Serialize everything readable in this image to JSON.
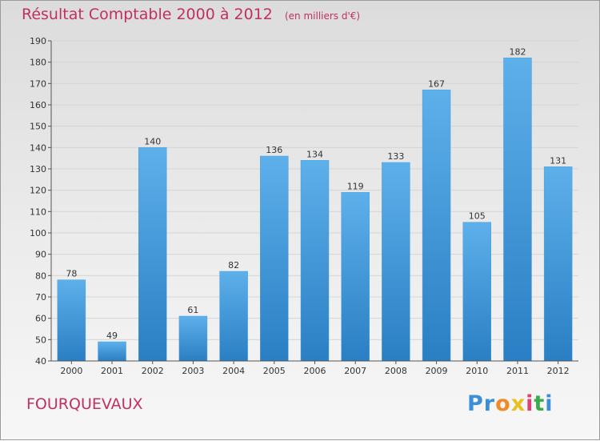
{
  "chart_data": {
    "type": "bar",
    "title": "Résultat Comptable 2000 à 2012",
    "subtitle": "(en milliers d'€)",
    "xlabel": "",
    "ylabel": "",
    "categories": [
      "2000",
      "2001",
      "2002",
      "2003",
      "2004",
      "2005",
      "2006",
      "2007",
      "2008",
      "2009",
      "2010",
      "2011",
      "2012"
    ],
    "values": [
      78,
      49,
      140,
      61,
      82,
      136,
      134,
      119,
      133,
      167,
      105,
      182,
      131
    ],
    "ylim": [
      40,
      190
    ],
    "yticks": [
      40,
      50,
      60,
      70,
      80,
      90,
      100,
      110,
      120,
      130,
      140,
      150,
      160,
      170,
      180,
      190
    ],
    "grid": true,
    "bar_color_top": "#5db0ea",
    "bar_color_bottom": "#2a7fc4"
  },
  "footer": {
    "commune": "FOURQUEVAUX",
    "logo_letters": [
      "P",
      "r",
      "o",
      "x",
      "i",
      "t",
      "i"
    ],
    "logo_colors": [
      "#3a8fd8",
      "#3a8fd8",
      "#f08a24",
      "#e8c020",
      "#e04070",
      "#3aaa4a",
      "#3a8fd8"
    ]
  },
  "colors": {
    "accent": "#c03060",
    "grid": "#d4d4d4",
    "background_top": "#dcdcdc",
    "background_bottom": "#f7f7f7"
  }
}
